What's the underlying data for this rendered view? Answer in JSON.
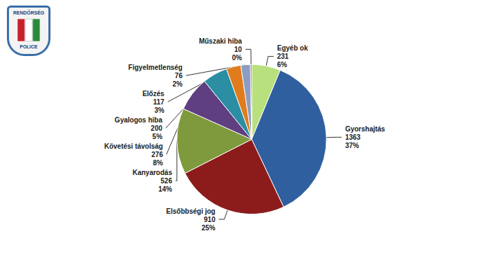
{
  "chart_data": {
    "type": "pie",
    "categories": [
      "Egyéb ok",
      "Gyorshajtás",
      "Elsőbbségi jog",
      "Kanyarodás",
      "Követési távolság",
      "Gyalogos hiba",
      "Előzés",
      "Figyelmetlenség",
      "Műszaki hiba"
    ],
    "values": [
      231,
      1363,
      910,
      526,
      276,
      200,
      117,
      76,
      10
    ],
    "percentages": [
      {
        "value": 6,
        "label": "6%"
      },
      {
        "value": 37,
        "label": "37%"
      },
      {
        "value": 25,
        "label": "25%"
      },
      {
        "value": 14,
        "label": "14%"
      },
      {
        "value": 8,
        "label": "8%"
      },
      {
        "value": 5,
        "label": "5%"
      },
      {
        "value": 3,
        "label": "3%"
      },
      {
        "value": 2,
        "label": "2%"
      },
      {
        "value": 0,
        "label": "0%"
      }
    ],
    "colors": [
      "#b8e07c",
      "#2f5f9e",
      "#8c1c1c",
      "#7e9a3c",
      "#5f3f80",
      "#2b8ea3",
      "#e07c1c",
      "#8d9cc4",
      "#7a2e3a"
    ],
    "data_labels": true,
    "annotations": [
      "RENDŐRSÉG",
      "POLICE"
    ]
  }
}
